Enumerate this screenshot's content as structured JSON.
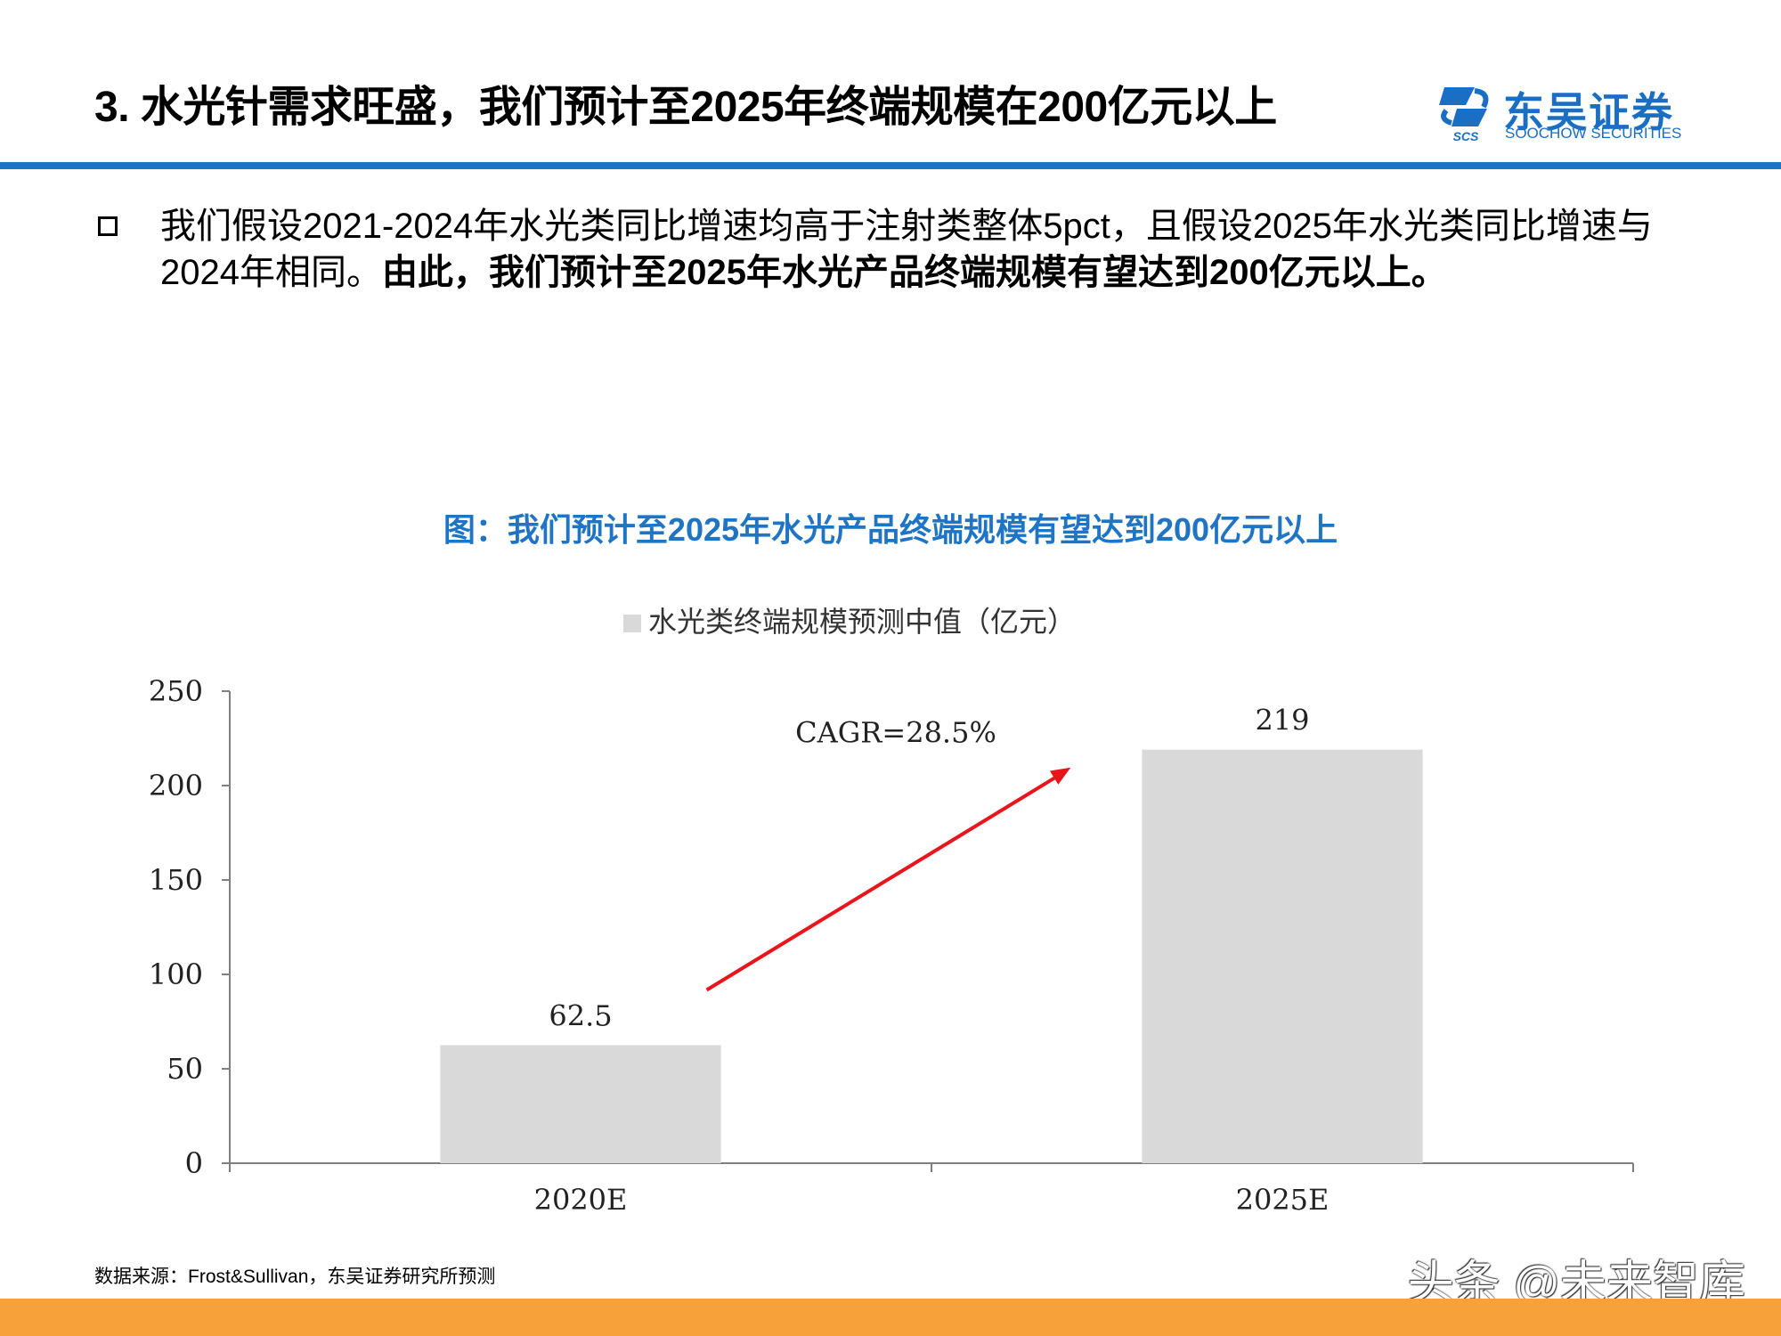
{
  "header": {
    "title": "3. 水光针需求旺盛，我们预计至2025年终端规模在200亿元以上",
    "logo_cn": "东吴证券",
    "logo_en": "SOOCHOW SECURITIES",
    "logo_abbr": "SCS"
  },
  "bullet": {
    "plain": "我们假设2021-2024年水光类同比增速均高于注射类整体5pct，且假设2025年水光类同比增速与2024年相同。",
    "bold": "由此，我们预计至2025年水光产品终端规模有望达到200亿元以上。"
  },
  "figure_title": "图：我们预计至2025年水光产品终端规模有望达到200亿元以上",
  "chart_data": {
    "type": "bar",
    "categories": [
      "2020E",
      "2025E"
    ],
    "series": [
      {
        "name": "水光类终端规模预测中值（亿元）",
        "values": [
          62.5,
          219
        ]
      }
    ],
    "data_labels": [
      "62.5",
      "219"
    ],
    "ylim": [
      0,
      250
    ],
    "yticks": [
      0,
      50,
      100,
      150,
      200,
      250
    ],
    "annotation": "CAGR=28.5%",
    "legend_position": "top-center",
    "grid": false,
    "colors": {
      "bar": "#d9d9d9",
      "arrow": "#e8151b",
      "axis": "#7f7f7f"
    }
  },
  "source": "数据来源：Frost&Sullivan，东吴证券研究所预测",
  "watermark": "头条 @未来智库",
  "colors": {
    "accent": "#1b74c8",
    "footer": "#f7a13a",
    "figure_title": "#1f75c4"
  }
}
